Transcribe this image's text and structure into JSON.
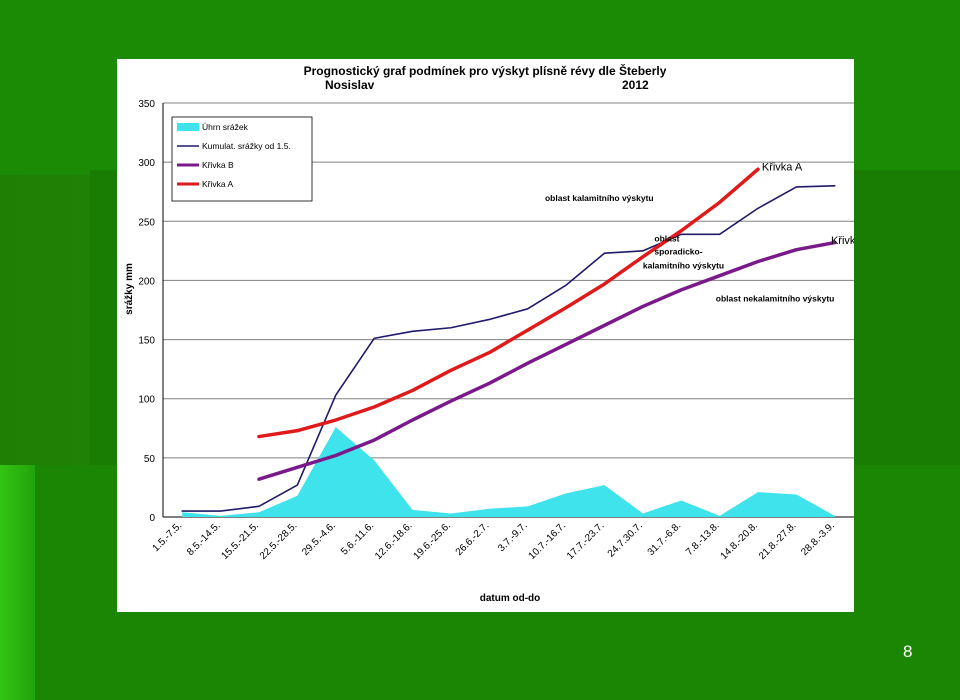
{
  "slide": {
    "page_number": "8"
  },
  "chart_data": {
    "type": "line",
    "title": "Prognostický graf podmínek pro výskyt plísně révy dle Šteberly",
    "subtitle_left": "Nosislav",
    "subtitle_right": "2012",
    "xlabel": "datum od-do",
    "ylabel": "srážky mm",
    "ylim": [
      0,
      350
    ],
    "yticks": [
      0,
      50,
      100,
      150,
      200,
      250,
      300,
      350
    ],
    "grid": true,
    "legend_position": "top-left",
    "categories": [
      "1.5.-7.5.",
      "8.5.-14.5.",
      "15.5.-21.5.",
      "22.5.-28.5.",
      "29.5.-4.6.",
      "5.6.-11.6.",
      "12.6.-18.6.",
      "19.6.-25.6.",
      "26.6.-2.7.",
      "3.7.-9.7.",
      "10.7.-16.7.",
      "17.7.-23.7.",
      "24.7.30.7.",
      "31.7.-6.8.",
      "7.8.-13.8.",
      "14.8.-20.8.",
      "21.8.-27.8.",
      "28.8.-3.9."
    ],
    "series": [
      {
        "name": "Úhrn srážek",
        "kind": "area",
        "color": "#3fe3ec",
        "values": [
          4,
          1,
          4,
          18,
          76,
          48,
          6,
          3,
          7,
          9,
          20,
          27,
          3,
          14,
          1,
          21,
          19,
          1
        ]
      },
      {
        "name": "Kumulat. srážky od 1.5.",
        "kind": "line",
        "color": "#1f1a6b",
        "values": [
          5,
          5,
          9,
          27,
          103,
          151,
          157,
          160,
          167,
          176,
          196,
          223,
          225,
          239,
          239,
          261,
          279,
          280
        ]
      },
      {
        "name": "Křivka B",
        "kind": "line",
        "color": "#7a1a8a",
        "x": [
          2,
          3,
          4,
          5,
          6,
          7,
          8,
          9,
          10,
          11,
          12,
          13,
          14,
          15,
          16,
          17
        ],
        "values": [
          32,
          42,
          52,
          65,
          82,
          98,
          113,
          130,
          146,
          162,
          178,
          192,
          204,
          216,
          226,
          232
        ]
      },
      {
        "name": "Křivka A",
        "kind": "line",
        "color": "#e01a1a",
        "x": [
          2,
          3,
          4,
          5,
          6,
          7,
          8,
          9,
          10,
          11,
          12,
          13,
          14,
          15
        ],
        "values": [
          68,
          73,
          82,
          93,
          107,
          124,
          139,
          158,
          177,
          197,
          220,
          242,
          266,
          294
        ]
      }
    ],
    "annotations": [
      {
        "text": "Křivka A",
        "x": 15.1,
        "y": 293,
        "size": 11
      },
      {
        "text": "Křivka B",
        "x": 16.9,
        "y": 231,
        "size": 11
      },
      {
        "text": "oblast kalamitního výskytu",
        "x": 9.45,
        "y": 267,
        "size": 8.5,
        "bold": true
      },
      {
        "text": "oblast",
        "x": 12.3,
        "y": 233,
        "size": 8.5,
        "bold": true
      },
      {
        "text": "sporadicko-",
        "x": 12.3,
        "y": 222,
        "size": 8.5,
        "bold": true
      },
      {
        "text": "kalamitního výskytu",
        "x": 12.0,
        "y": 210,
        "size": 8.5,
        "bold": true
      },
      {
        "text": "oblast nekalamitního výskytu",
        "x": 13.9,
        "y": 182,
        "size": 8.5,
        "bold": true
      }
    ]
  }
}
